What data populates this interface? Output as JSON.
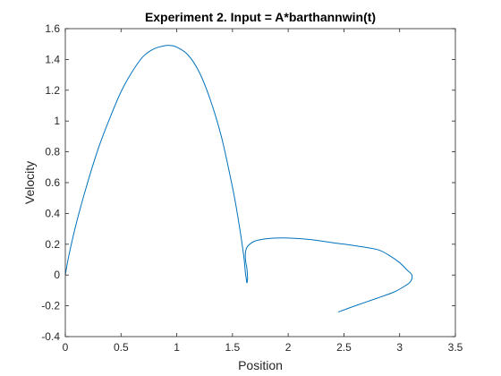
{
  "chart_data": {
    "type": "line",
    "title": "Experiment 2. Input = A*barthannwin(t)",
    "xlabel": "Position",
    "ylabel": "Velocity",
    "xlim": [
      0,
      3.5
    ],
    "ylim": [
      -0.4,
      1.6
    ],
    "xticks": [
      0,
      0.5,
      1,
      1.5,
      2,
      2.5,
      3,
      3.5
    ],
    "yticks": [
      -0.4,
      -0.2,
      0,
      0.2,
      0.4,
      0.6,
      0.8,
      1,
      1.2,
      1.4,
      1.6
    ],
    "xtick_labels": [
      "0",
      "0.5",
      "1",
      "1.5",
      "2",
      "2.5",
      "3",
      "3.5"
    ],
    "ytick_labels": [
      "-0.4",
      "-0.2",
      "0",
      "0.2",
      "0.4",
      "0.6",
      "0.8",
      "1",
      "1.2",
      "1.4",
      "1.6"
    ],
    "grid": false,
    "box": true,
    "series": [
      {
        "color": "#0072BD",
        "x": [
          0,
          0.03,
          0.1,
          0.2,
          0.3,
          0.4,
          0.5,
          0.6,
          0.7,
          0.8,
          0.9,
          0.95,
          1.0,
          1.1,
          1.2,
          1.3,
          1.4,
          1.5,
          1.55,
          1.6,
          1.615,
          1.625,
          1.63,
          1.635,
          1.63,
          1.62,
          1.615,
          1.62,
          1.64,
          1.7,
          1.8,
          1.9,
          2.0,
          2.2,
          2.4,
          2.6,
          2.8,
          2.9,
          3.0,
          3.07,
          3.11,
          3.1,
          3.05,
          2.95,
          2.8,
          2.6,
          2.45
        ],
        "y": [
          0,
          0.12,
          0.34,
          0.6,
          0.83,
          1.02,
          1.19,
          1.32,
          1.42,
          1.47,
          1.49,
          1.49,
          1.48,
          1.43,
          1.32,
          1.14,
          0.9,
          0.57,
          0.37,
          0.13,
          0.02,
          -0.03,
          -0.05,
          -0.02,
          0.04,
          0.08,
          0.12,
          0.16,
          0.19,
          0.22,
          0.235,
          0.24,
          0.24,
          0.23,
          0.21,
          0.19,
          0.165,
          0.13,
          0.08,
          0.03,
          0.0,
          -0.04,
          -0.07,
          -0.11,
          -0.15,
          -0.2,
          -0.24
        ]
      }
    ]
  }
}
